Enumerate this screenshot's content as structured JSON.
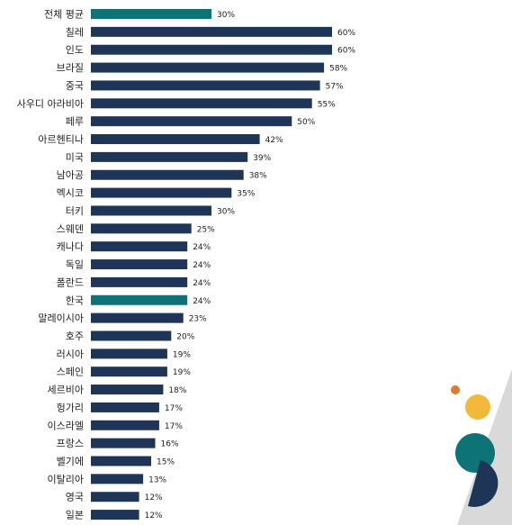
{
  "chart_data": {
    "type": "bar",
    "orientation": "horizontal",
    "categories": [
      "전체 평균",
      "칠레",
      "인도",
      "브라질",
      "중국",
      "사우디 아라비아",
      "페루",
      "아르헨티나",
      "미국",
      "남아공",
      "멕시코",
      "터키",
      "스웨덴",
      "캐나다",
      "독일",
      "폴란드",
      "한국",
      "말레이시아",
      "호주",
      "러시아",
      "스페인",
      "세르비아",
      "헝가리",
      "이스라엘",
      "프랑스",
      "벨기에",
      "이탈리아",
      "영국",
      "일본"
    ],
    "values": [
      30,
      60,
      60,
      58,
      57,
      55,
      50,
      42,
      39,
      38,
      35,
      30,
      25,
      24,
      24,
      24,
      24,
      23,
      20,
      19,
      19,
      18,
      17,
      17,
      16,
      15,
      13,
      12,
      12
    ],
    "value_labels": [
      "30%",
      "60%",
      "60%",
      "58%",
      "57%",
      "55%",
      "50%",
      "42%",
      "39%",
      "38%",
      "35%",
      "30%",
      "25%",
      "24%",
      "24%",
      "24%",
      "24%",
      "23%",
      "20%",
      "19%",
      "19%",
      "18%",
      "17%",
      "17%",
      "16%",
      "15%",
      "13%",
      "12%",
      "12%"
    ],
    "highlight": [
      "전체 평균",
      "한국"
    ],
    "unit": "%",
    "xlim": [
      0,
      60
    ],
    "grid": false,
    "legend": "none",
    "title": "",
    "xlabel": "",
    "ylabel": ""
  },
  "colors": {
    "bar": "#1e3557",
    "highlight": "#0e7377",
    "text": "#222222",
    "deco_orange": "#e07b2e",
    "deco_yellow": "#f2b83a",
    "deco_teal": "#0e7377",
    "deco_navy": "#1e3557",
    "deco_grey": "#d9d9d9"
  }
}
